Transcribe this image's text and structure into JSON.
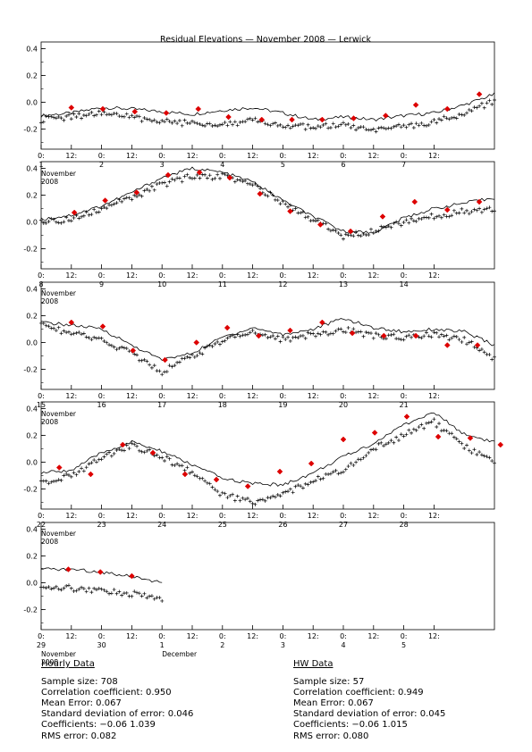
{
  "chart_data": {
    "type": "line",
    "title": "Residual Elevations — November 2008 — Lerwick",
    "ylim": [
      -0.35,
      0.45
    ],
    "y_ticks": [
      "0.4",
      "0.2",
      "0.0",
      "-0.2"
    ],
    "x_tick_labels": [
      "0:",
      "12:",
      "0:",
      "12:",
      "0:",
      "12:",
      "0:",
      "12:",
      "0:",
      "12:",
      "0:",
      "12:",
      "0:",
      "12:"
    ],
    "series_styles": {
      "line_color": "#000000",
      "marker_color": "#000000",
      "hw_color": "#dd0000"
    },
    "panels": [
      {
        "days": [
          "1",
          "2",
          "3",
          "4",
          "5",
          "6",
          "7"
        ],
        "month_label": "November",
        "year_label": "2008",
        "extra_label": "",
        "observed_curve": [
          [
            0,
            -0.1
          ],
          [
            0.5,
            -0.08
          ],
          [
            1,
            -0.04
          ],
          [
            1.5,
            -0.05
          ],
          [
            2,
            -0.07
          ],
          [
            2.5,
            -0.09
          ],
          [
            3,
            -0.06
          ],
          [
            3.5,
            -0.04
          ],
          [
            4,
            -0.08
          ],
          [
            4.5,
            -0.13
          ],
          [
            5,
            -0.11
          ],
          [
            5.5,
            -0.13
          ],
          [
            6,
            -0.1
          ],
          [
            6.5,
            -0.08
          ],
          [
            7,
            -0.02
          ],
          [
            7.5,
            0.06
          ]
        ],
        "hourly_points": [
          [
            0,
            -0.13
          ],
          [
            0.5,
            -0.11
          ],
          [
            1,
            -0.08
          ],
          [
            1.5,
            -0.11
          ],
          [
            2,
            -0.14
          ],
          [
            2.5,
            -0.16
          ],
          [
            3,
            -0.16
          ],
          [
            3.5,
            -0.14
          ],
          [
            4,
            -0.17
          ],
          [
            4.5,
            -0.19
          ],
          [
            5,
            -0.17
          ],
          [
            5.5,
            -0.22
          ],
          [
            6,
            -0.18
          ],
          [
            6.5,
            -0.15
          ],
          [
            7,
            -0.08
          ],
          [
            7.5,
            0.01
          ]
        ],
        "hw_points": [
          [
            0.5,
            -0.04
          ],
          [
            1.02,
            -0.05
          ],
          [
            1.55,
            -0.07
          ],
          [
            2.07,
            -0.08
          ],
          [
            2.6,
            -0.05
          ],
          [
            3.1,
            -0.11
          ],
          [
            3.65,
            -0.13
          ],
          [
            4.15,
            -0.13
          ],
          [
            4.65,
            -0.13
          ],
          [
            5.17,
            -0.12
          ],
          [
            5.7,
            -0.1
          ],
          [
            6.2,
            -0.02
          ],
          [
            6.72,
            -0.05
          ],
          [
            7.25,
            0.06
          ]
        ]
      },
      {
        "days": [
          "8",
          "9",
          "10",
          "11",
          "12",
          "13",
          "14"
        ],
        "month_label": "November",
        "year_label": "2008",
        "extra_label": "",
        "observed_curve": [
          [
            0,
            0.02
          ],
          [
            0.5,
            0.05
          ],
          [
            1,
            0.12
          ],
          [
            1.5,
            0.22
          ],
          [
            2,
            0.33
          ],
          [
            2.5,
            0.4
          ],
          [
            3,
            0.37
          ],
          [
            3.5,
            0.3
          ],
          [
            4,
            0.16
          ],
          [
            4.5,
            0.04
          ],
          [
            5,
            -0.07
          ],
          [
            5.5,
            -0.08
          ],
          [
            6,
            0.03
          ],
          [
            6.5,
            0.1
          ],
          [
            7,
            0.14
          ],
          [
            7.5,
            0.18
          ]
        ],
        "hourly_points": [
          [
            0,
            0.0
          ],
          [
            0.5,
            0.02
          ],
          [
            1,
            0.1
          ],
          [
            1.5,
            0.18
          ],
          [
            2,
            0.28
          ],
          [
            2.5,
            0.34
          ],
          [
            3,
            0.34
          ],
          [
            3.5,
            0.28
          ],
          [
            4,
            0.14
          ],
          [
            4.5,
            0.02
          ],
          [
            5,
            -0.11
          ],
          [
            5.5,
            -0.07
          ],
          [
            6,
            0.0
          ],
          [
            6.5,
            0.04
          ],
          [
            7,
            0.08
          ],
          [
            7.5,
            0.1
          ]
        ],
        "hw_points": [
          [
            0.55,
            0.07
          ],
          [
            1.06,
            0.16
          ],
          [
            1.58,
            0.22
          ],
          [
            2.1,
            0.35
          ],
          [
            2.62,
            0.37
          ],
          [
            3.12,
            0.33
          ],
          [
            3.62,
            0.21
          ],
          [
            4.12,
            0.08
          ],
          [
            4.62,
            -0.02
          ],
          [
            5.12,
            -0.07
          ],
          [
            5.65,
            0.04
          ],
          [
            6.18,
            0.15
          ],
          [
            6.72,
            0.09
          ],
          [
            7.25,
            0.15
          ]
        ]
      },
      {
        "days": [
          "15",
          "16",
          "17",
          "18",
          "19",
          "20",
          "21"
        ],
        "month_label": "November",
        "year_label": "2008",
        "extra_label": "",
        "observed_curve": [
          [
            0,
            0.15
          ],
          [
            0.5,
            0.13
          ],
          [
            1,
            0.1
          ],
          [
            1.5,
            -0.02
          ],
          [
            2,
            -0.13
          ],
          [
            2.5,
            -0.08
          ],
          [
            3,
            0.04
          ],
          [
            3.5,
            0.11
          ],
          [
            4,
            0.06
          ],
          [
            4.5,
            0.1
          ],
          [
            5,
            0.18
          ],
          [
            5.5,
            0.11
          ],
          [
            6,
            0.08
          ],
          [
            6.5,
            0.1
          ],
          [
            7,
            0.08
          ],
          [
            7.5,
            -0.02
          ]
        ],
        "hourly_points": [
          [
            0,
            0.13
          ],
          [
            0.5,
            0.07
          ],
          [
            1,
            0.02
          ],
          [
            1.5,
            -0.08
          ],
          [
            2,
            -0.22
          ],
          [
            2.5,
            -0.1
          ],
          [
            3,
            0.01
          ],
          [
            3.5,
            0.09
          ],
          [
            4,
            0.02
          ],
          [
            4.5,
            0.06
          ],
          [
            5,
            0.1
          ],
          [
            5.5,
            0.05
          ],
          [
            6,
            0.04
          ],
          [
            6.5,
            0.06
          ],
          [
            7,
            0.02
          ],
          [
            7.5,
            -0.12
          ]
        ],
        "hw_points": [
          [
            0.5,
            0.15
          ],
          [
            1.02,
            0.12
          ],
          [
            1.52,
            -0.06
          ],
          [
            2.05,
            -0.13
          ],
          [
            2.57,
            0.0
          ],
          [
            3.08,
            0.11
          ],
          [
            3.6,
            0.05
          ],
          [
            4.12,
            0.09
          ],
          [
            4.65,
            0.15
          ],
          [
            5.15,
            0.07
          ],
          [
            5.67,
            0.05
          ],
          [
            6.2,
            0.05
          ],
          [
            6.72,
            -0.02
          ],
          [
            7.22,
            -0.02
          ]
        ]
      },
      {
        "days": [
          "22",
          "23",
          "24",
          "25",
          "26",
          "27",
          "28"
        ],
        "month_label": "November",
        "year_label": "2008",
        "extra_label": "",
        "observed_curve": [
          [
            0,
            -0.08
          ],
          [
            0.5,
            -0.06
          ],
          [
            1,
            0.07
          ],
          [
            1.5,
            0.15
          ],
          [
            2,
            0.08
          ],
          [
            2.5,
            -0.02
          ],
          [
            3,
            -0.12
          ],
          [
            3.5,
            -0.16
          ],
          [
            4,
            -0.17
          ],
          [
            4.5,
            -0.08
          ],
          [
            5,
            0.04
          ],
          [
            5.5,
            0.14
          ],
          [
            6,
            0.28
          ],
          [
            6.5,
            0.37
          ],
          [
            7,
            0.21
          ],
          [
            7.5,
            0.15
          ]
        ],
        "hourly_points": [
          [
            0,
            -0.15
          ],
          [
            0.5,
            -0.1
          ],
          [
            1,
            0.03
          ],
          [
            1.5,
            0.12
          ],
          [
            2,
            0.04
          ],
          [
            2.5,
            -0.08
          ],
          [
            3,
            -0.24
          ],
          [
            3.5,
            -0.3
          ],
          [
            4,
            -0.24
          ],
          [
            4.5,
            -0.14
          ],
          [
            5,
            -0.06
          ],
          [
            5.5,
            0.1
          ],
          [
            6,
            0.2
          ],
          [
            6.5,
            0.3
          ],
          [
            7,
            0.12
          ],
          [
            7.5,
            0.0
          ]
        ],
        "hw_points": [
          [
            0.3,
            -0.04
          ],
          [
            0.82,
            -0.09
          ],
          [
            1.35,
            0.13
          ],
          [
            1.85,
            0.07
          ],
          [
            2.38,
            -0.09
          ],
          [
            2.9,
            -0.13
          ],
          [
            3.42,
            -0.18
          ],
          [
            3.95,
            -0.07
          ],
          [
            4.47,
            -0.01
          ],
          [
            5.0,
            0.17
          ],
          [
            5.52,
            0.22
          ],
          [
            6.05,
            0.34
          ],
          [
            6.57,
            0.19
          ],
          [
            7.1,
            0.18
          ],
          [
            7.6,
            0.13
          ]
        ]
      },
      {
        "days": [
          "29",
          "30",
          "1",
          "2",
          "3",
          "4",
          "5"
        ],
        "month_label": "November",
        "year_label": "2008",
        "extra_label": "December",
        "observed_curve": [
          [
            0,
            0.1
          ],
          [
            0.5,
            0.1
          ],
          [
            1,
            0.08
          ],
          [
            1.5,
            0.05
          ],
          [
            2,
            0.0
          ]
        ],
        "hourly_points": [
          [
            0,
            -0.04
          ],
          [
            0.5,
            -0.04
          ],
          [
            1,
            -0.06
          ],
          [
            1.5,
            -0.08
          ],
          [
            2,
            -0.13
          ]
        ],
        "hw_points": [
          [
            0.45,
            0.1
          ],
          [
            0.98,
            0.08
          ],
          [
            1.5,
            0.05
          ]
        ]
      }
    ]
  },
  "stats": {
    "hourly": {
      "header": "Hourly Data",
      "lines": [
        "Sample size: 708",
        "Correlation coefficient: 0.950",
        "Mean Error: 0.067",
        "Standard deviation of error: 0.046",
        "Coefficients: −0.06   1.039",
        "RMS error: 0.082"
      ]
    },
    "hw": {
      "header": "HW Data",
      "lines": [
        "Sample size: 57",
        "Correlation coefficient: 0.949",
        "Mean Error: 0.067",
        "Standard deviation of error: 0.045",
        "Coefficients: −0.06   1.015",
        "RMS error: 0.080"
      ]
    }
  }
}
